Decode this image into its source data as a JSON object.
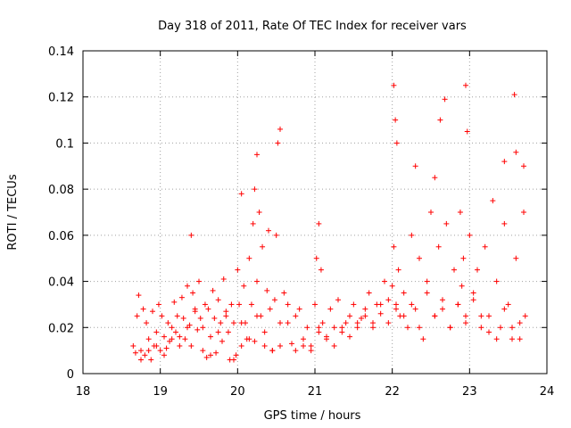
{
  "chart_data": {
    "type": "scatter",
    "title": "Day 318 of 2011, Rate Of TEC Index for receiver vars",
    "xlabel": "GPS time / hours",
    "ylabel": "ROTI / TECUs",
    "xlim": [
      18,
      24
    ],
    "ylim": [
      0,
      0.14
    ],
    "xticks": [
      "18",
      "19",
      "20",
      "21",
      "22",
      "23",
      "24"
    ],
    "yticks": [
      "0",
      "0.02",
      "0.04",
      "0.06",
      "0.08",
      "0.1",
      "0.12",
      "0.14"
    ],
    "grid": true,
    "marker": "+",
    "color": "#ff0000",
    "series": [
      {
        "name": "ROTI",
        "x": [
          18.65,
          18.7,
          18.72,
          18.75,
          18.78,
          18.8,
          18.82,
          18.85,
          18.88,
          18.9,
          18.92,
          18.95,
          18.98,
          19.0,
          19.02,
          19.05,
          19.08,
          19.1,
          19.12,
          19.15,
          19.18,
          19.2,
          19.22,
          19.25,
          19.28,
          19.3,
          19.32,
          19.35,
          19.38,
          19.4,
          19.42,
          19.45,
          19.48,
          19.5,
          19.52,
          19.55,
          19.58,
          19.6,
          19.62,
          19.65,
          19.68,
          19.7,
          19.72,
          19.75,
          19.78,
          19.8,
          19.82,
          19.85,
          19.88,
          19.9,
          19.92,
          19.95,
          19.98,
          20.0,
          20.02,
          20.05,
          20.08,
          20.1,
          20.12,
          20.15,
          20.18,
          20.2,
          20.22,
          20.25,
          20.28,
          20.3,
          20.32,
          20.35,
          20.38,
          20.4,
          20.42,
          20.45,
          20.48,
          20.5,
          20.55,
          20.6,
          20.65,
          20.7,
          20.75,
          20.8,
          20.85,
          20.9,
          20.95,
          21.0,
          21.02,
          21.05,
          21.08,
          21.1,
          21.15,
          21.2,
          21.25,
          21.3,
          21.35,
          21.4,
          21.45,
          21.5,
          21.55,
          21.6,
          21.65,
          21.7,
          21.75,
          21.8,
          21.85,
          21.9,
          21.95,
          22.0,
          22.02,
          22.05,
          22.08,
          22.1,
          22.15,
          22.2,
          22.25,
          22.3,
          22.35,
          22.4,
          22.45,
          22.5,
          22.55,
          22.6,
          22.65,
          22.7,
          22.75,
          22.8,
          22.85,
          22.88,
          22.9,
          22.92,
          22.95,
          23.0,
          23.05,
          23.1,
          23.15,
          23.2,
          23.25,
          23.3,
          23.35,
          23.4,
          23.45,
          23.5,
          23.55,
          23.6,
          23.65,
          23.7,
          23.72,
          18.68,
          18.75,
          18.85,
          18.95,
          19.05,
          19.15,
          19.25,
          19.35,
          19.45,
          19.55,
          19.65,
          19.75,
          19.85,
          19.95,
          20.05,
          20.15,
          20.25,
          20.35,
          20.45,
          20.55,
          20.65,
          20.75,
          20.85,
          20.95,
          21.05,
          21.15,
          21.25,
          21.35,
          21.45,
          21.55,
          21.65,
          21.75,
          21.85,
          21.95,
          22.05,
          22.15,
          22.25,
          22.35,
          22.45,
          22.55,
          22.65,
          22.75,
          22.85,
          22.95,
          23.05,
          23.15,
          23.25,
          23.35,
          23.45,
          23.55,
          23.65,
          22.02,
          22.04,
          22.06,
          22.95,
          22.97,
          22.68,
          22.62,
          23.58,
          20.55,
          20.52,
          20.25,
          20.22,
          20.05,
          21.05,
          19.4,
          23.6,
          23.7,
          23.45,
          22.3,
          22.55
        ],
        "y": [
          0.012,
          0.025,
          0.034,
          0.01,
          0.028,
          0.008,
          0.022,
          0.015,
          0.006,
          0.027,
          0.012,
          0.018,
          0.03,
          0.01,
          0.025,
          0.016,
          0.011,
          0.022,
          0.014,
          0.02,
          0.031,
          0.018,
          0.025,
          0.016,
          0.033,
          0.024,
          0.015,
          0.038,
          0.021,
          0.012,
          0.035,
          0.027,
          0.019,
          0.04,
          0.024,
          0.01,
          0.03,
          0.007,
          0.028,
          0.016,
          0.036,
          0.024,
          0.009,
          0.032,
          0.022,
          0.014,
          0.041,
          0.027,
          0.018,
          0.006,
          0.03,
          0.022,
          0.008,
          0.045,
          0.03,
          0.012,
          0.038,
          0.022,
          0.015,
          0.05,
          0.03,
          0.065,
          0.014,
          0.04,
          0.07,
          0.025,
          0.055,
          0.012,
          0.036,
          0.062,
          0.028,
          0.01,
          0.032,
          0.06,
          0.012,
          0.035,
          0.022,
          0.013,
          0.01,
          0.028,
          0.015,
          0.02,
          0.012,
          0.03,
          0.05,
          0.018,
          0.045,
          0.022,
          0.016,
          0.028,
          0.02,
          0.032,
          0.018,
          0.022,
          0.025,
          0.03,
          0.02,
          0.024,
          0.028,
          0.035,
          0.022,
          0.03,
          0.026,
          0.04,
          0.032,
          0.038,
          0.055,
          0.03,
          0.045,
          0.025,
          0.035,
          0.02,
          0.06,
          0.028,
          0.05,
          0.015,
          0.04,
          0.07,
          0.025,
          0.055,
          0.032,
          0.065,
          0.02,
          0.045,
          0.03,
          0.07,
          0.038,
          0.05,
          0.022,
          0.06,
          0.035,
          0.045,
          0.025,
          0.055,
          0.018,
          0.075,
          0.04,
          0.02,
          0.065,
          0.03,
          0.015,
          0.05,
          0.022,
          0.07,
          0.025,
          0.009,
          0.006,
          0.01,
          0.012,
          0.008,
          0.015,
          0.012,
          0.02,
          0.028,
          0.02,
          0.008,
          0.018,
          0.025,
          0.006,
          0.022,
          0.015,
          0.025,
          0.018,
          0.01,
          0.022,
          0.03,
          0.025,
          0.012,
          0.01,
          0.02,
          0.015,
          0.012,
          0.02,
          0.016,
          0.022,
          0.025,
          0.02,
          0.03,
          0.022,
          0.028,
          0.025,
          0.03,
          0.02,
          0.035,
          0.025,
          0.028,
          0.02,
          0.03,
          0.025,
          0.032,
          0.02,
          0.025,
          0.015,
          0.028,
          0.02,
          0.015,
          0.125,
          0.11,
          0.1,
          0.125,
          0.105,
          0.119,
          0.11,
          0.121,
          0.106,
          0.1,
          0.095,
          0.08,
          0.078,
          0.065,
          0.06,
          0.096,
          0.09,
          0.092,
          0.09,
          0.085
        ]
      }
    ]
  }
}
